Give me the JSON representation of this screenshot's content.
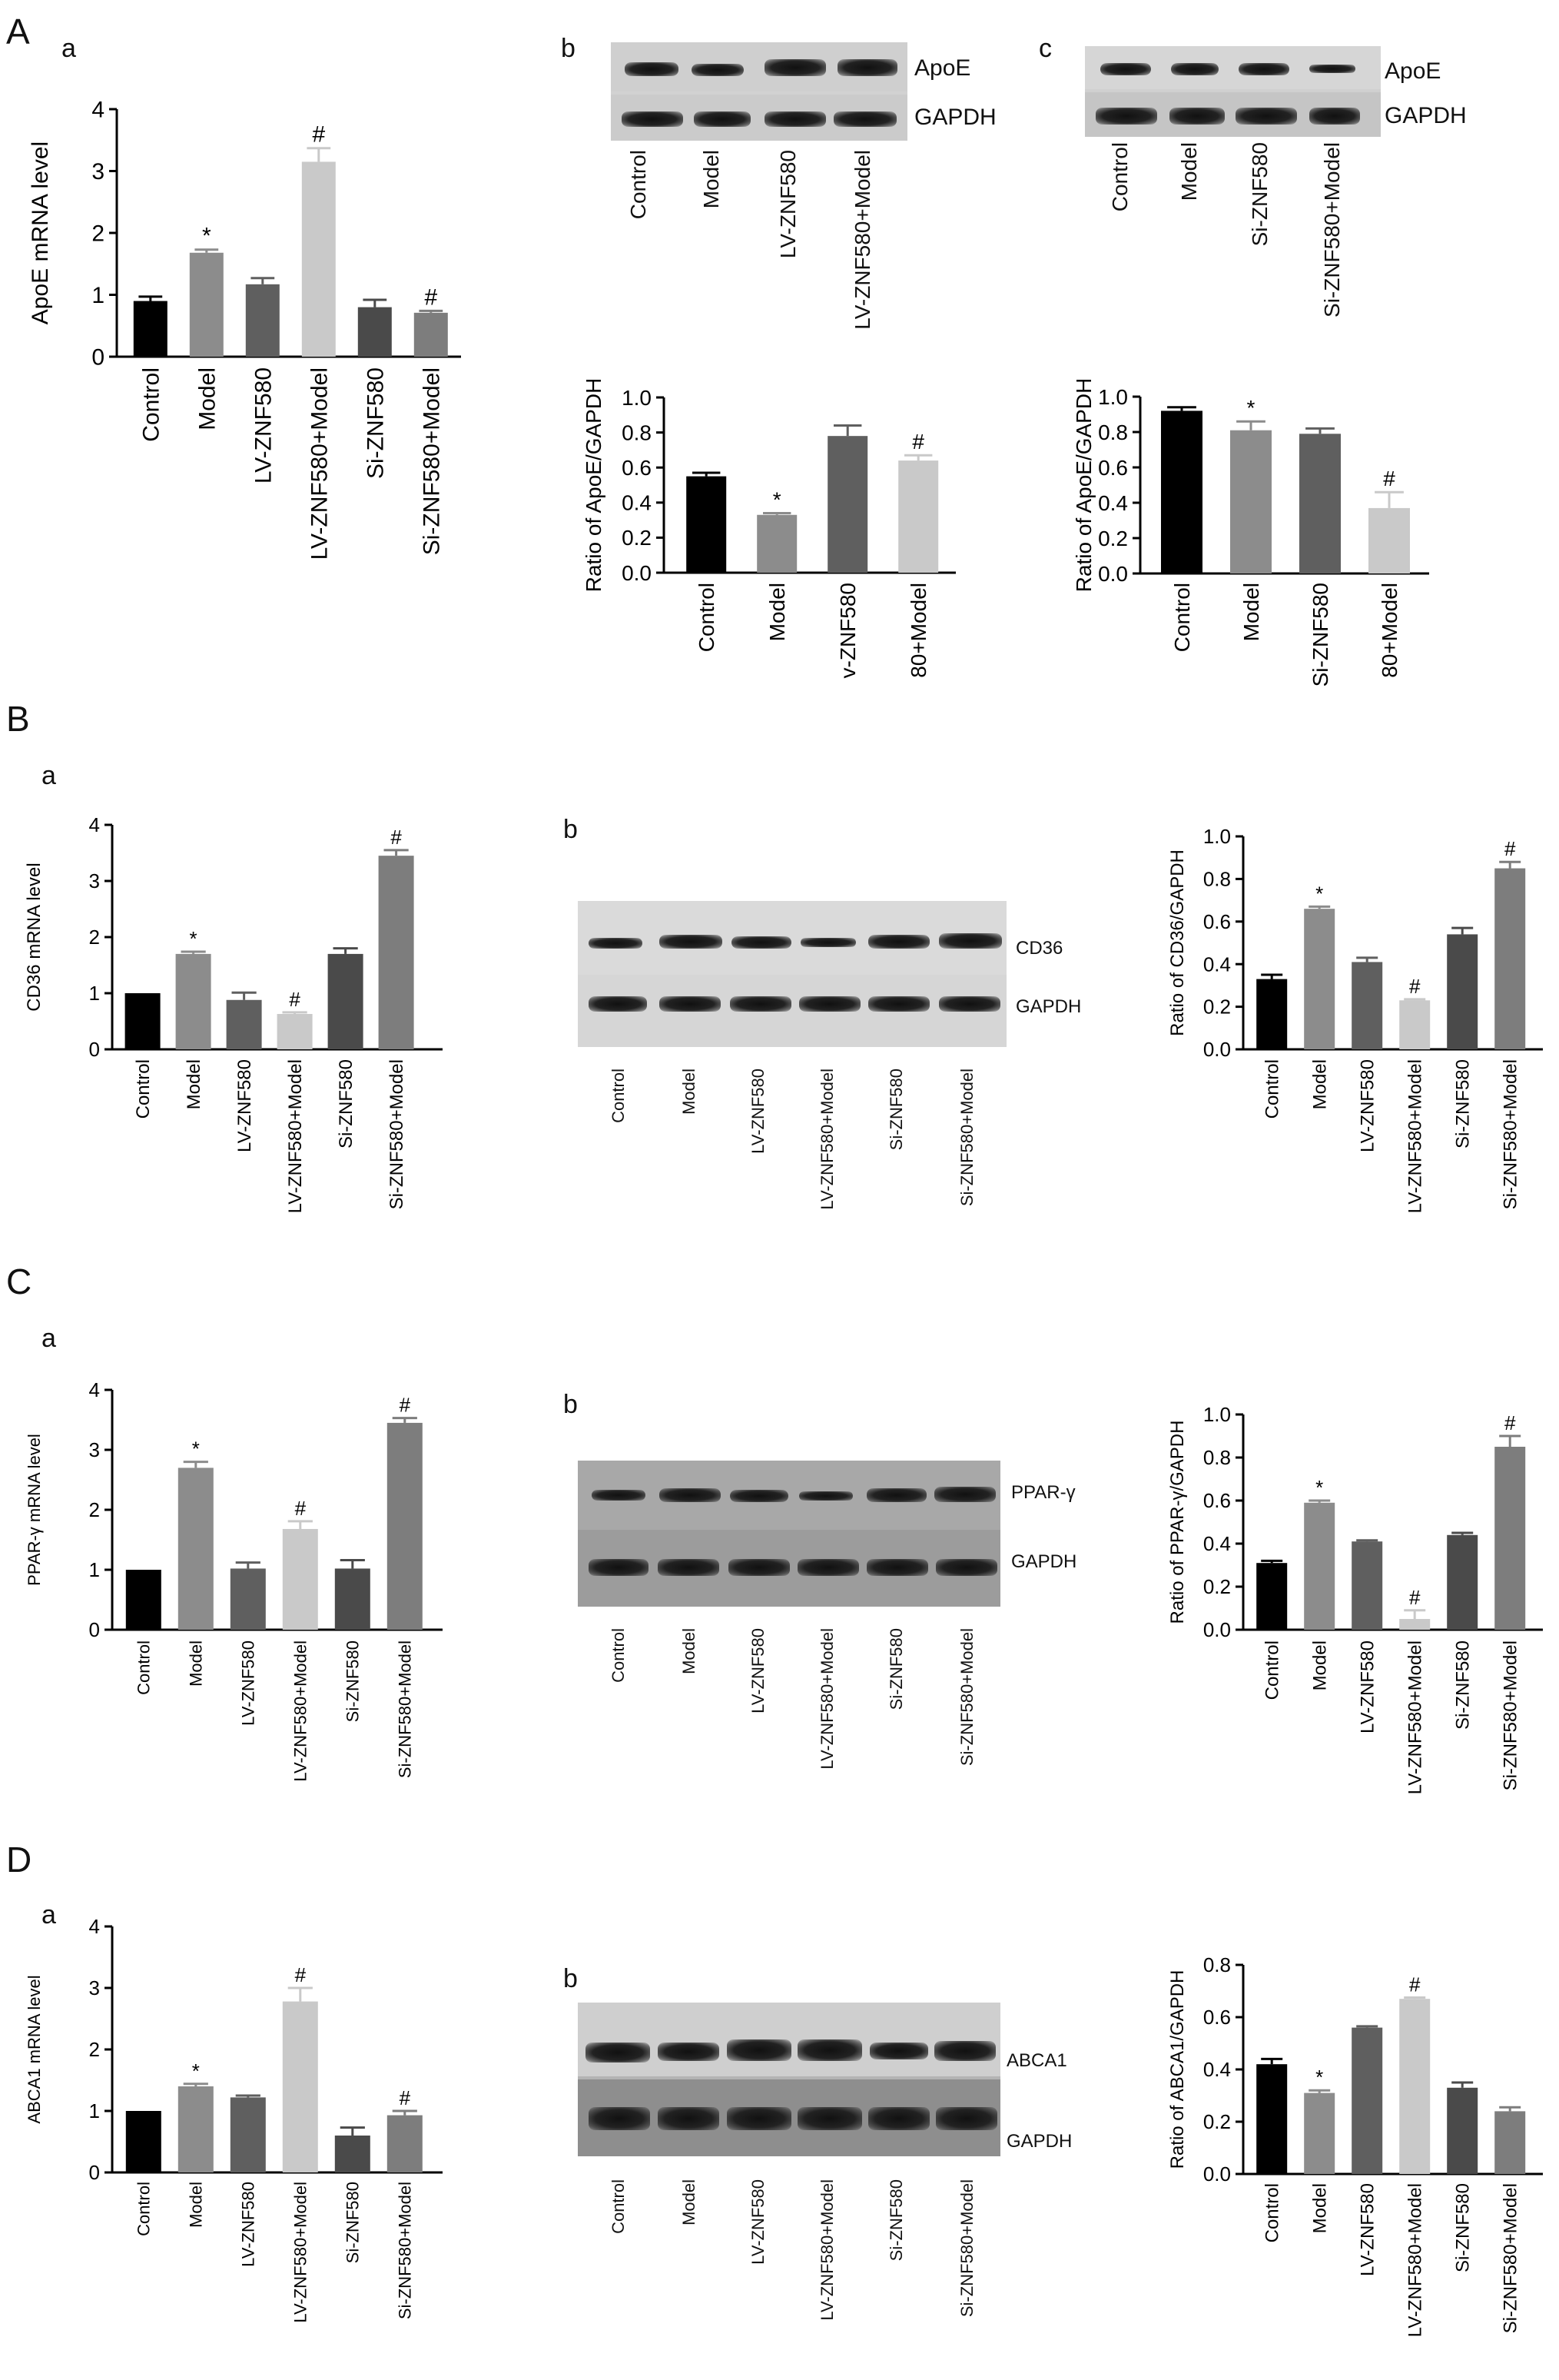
{
  "panels": {
    "A": "A",
    "B": "B",
    "C": "C",
    "D": "D"
  },
  "sublabels": {
    "a": "a",
    "b": "b",
    "c": "c"
  },
  "groups6": [
    "Control",
    "Model",
    "LV-ZNF580",
    "LV-ZNF580+Model",
    "Si-ZNF580",
    "Si-ZNF580+Model"
  ],
  "groupsA_b": [
    "Control",
    "Model",
    "LV-ZNF580",
    "LV-ZNF580+Model"
  ],
  "groupsA_c": [
    "Control",
    "Model",
    "Si-ZNF580",
    "Si-ZNF580+Model"
  ],
  "groupsA_b_chart": [
    "Control",
    "Model",
    "v-ZNF580",
    "80+Model"
  ],
  "groupsA_c_chart": [
    "Control",
    "Model",
    "Si-ZNF580",
    "80+Model"
  ],
  "blots": {
    "A_b": {
      "protein": "ApoE",
      "control": "GAPDH"
    },
    "A_c": {
      "protein": "ApoE",
      "control": "GAPDH"
    },
    "B_b": {
      "protein": "CD36",
      "control": "GAPDH"
    },
    "C_b": {
      "protein": "PPAR-γ",
      "control": "GAPDH"
    },
    "D_b": {
      "protein": "ABCA1",
      "control": "GAPDH"
    }
  },
  "colors": {
    "black": "#000000",
    "gray_mid": "#8c8c8c",
    "gray_dark": "#5f5f5f",
    "gray_light": "#c9c9c9",
    "gray_dark2": "#4a4a4a",
    "gray_med2": "#7d7d7d"
  },
  "chart_data": [
    {
      "id": "A_a",
      "type": "bar",
      "ylabel": "ApoE mRNA level",
      "ylim": [
        0,
        4
      ],
      "yticks": [
        "0",
        "1",
        "2",
        "3",
        "4"
      ],
      "categories": [
        "Control",
        "Model",
        "LV-ZNF580",
        "LV-ZNF580+Model",
        "Si-ZNF580",
        "Si-ZNF580+Model"
      ],
      "values": [
        0.9,
        1.68,
        1.17,
        3.15,
        0.8,
        0.71
      ],
      "errors": [
        0.07,
        0.05,
        0.1,
        0.22,
        0.12,
        0.03
      ],
      "marks": [
        "",
        "*",
        "",
        "#",
        "",
        "#"
      ]
    },
    {
      "id": "A_b",
      "type": "bar",
      "ylabel": "Ratio of ApoE/GAPDH",
      "ylim": [
        0,
        1.0
      ],
      "yticks": [
        "0.0",
        "0.2",
        "0.4",
        "0.6",
        "0.8",
        "1.0"
      ],
      "categories": [
        "Control",
        "Model",
        "v-ZNF580",
        "80+Model"
      ],
      "values": [
        0.55,
        0.33,
        0.78,
        0.64
      ],
      "errors": [
        0.02,
        0.01,
        0.06,
        0.03
      ],
      "marks": [
        "",
        "*",
        "",
        "#"
      ]
    },
    {
      "id": "A_c",
      "type": "bar",
      "ylabel": "Ratio of ApoE/GAPDH",
      "ylim": [
        0,
        1.0
      ],
      "yticks": [
        "0.0",
        "0.2",
        "0.4",
        "0.6",
        "0.8",
        "1.0"
      ],
      "categories": [
        "Control",
        "Model",
        "Si-ZNF580",
        "80+Model"
      ],
      "values": [
        0.92,
        0.81,
        0.79,
        0.37
      ],
      "errors": [
        0.02,
        0.05,
        0.03,
        0.09
      ],
      "marks": [
        "",
        "*",
        "",
        "#"
      ]
    },
    {
      "id": "B_a",
      "type": "bar",
      "ylabel": "CD36 mRNA level",
      "ylim": [
        0,
        4
      ],
      "yticks": [
        "0",
        "1",
        "2",
        "3",
        "4"
      ],
      "categories": [
        "Control",
        "Model",
        "LV-ZNF580",
        "LV-ZNF580+Model",
        "Si-ZNF580",
        "Si-ZNF580+Model"
      ],
      "values": [
        1.0,
        1.7,
        0.88,
        0.63,
        1.7,
        3.45
      ],
      "errors": [
        0,
        0.04,
        0.13,
        0.03,
        0.1,
        0.1
      ],
      "marks": [
        "",
        "*",
        "",
        "#",
        "",
        "#"
      ]
    },
    {
      "id": "B_b",
      "type": "bar",
      "ylabel": "Ratio of CD36/GAPDH",
      "ylim": [
        0,
        1.0
      ],
      "yticks": [
        "0.0",
        "0.2",
        "0.4",
        "0.6",
        "0.8",
        "1.0"
      ],
      "categories": [
        "Control",
        "Model",
        "LV-ZNF580",
        "LV-ZNF580+Model",
        "Si-ZNF580",
        "Si-ZNF580+Model"
      ],
      "values": [
        0.33,
        0.66,
        0.41,
        0.23,
        0.54,
        0.85
      ],
      "errors": [
        0.02,
        0.01,
        0.02,
        0.005,
        0.03,
        0.03
      ],
      "marks": [
        "",
        "*",
        "",
        "#",
        "",
        "#"
      ]
    },
    {
      "id": "C_a",
      "type": "bar",
      "ylabel": "PPAR-γ mRNA level",
      "ylim": [
        0,
        4
      ],
      "yticks": [
        "0",
        "1",
        "2",
        "3",
        "4"
      ],
      "categories": [
        "Control",
        "Model",
        "LV-ZNF580",
        "LV-ZNF580+Model",
        "Si-ZNF580",
        "Si-ZNF580+Model"
      ],
      "values": [
        1.0,
        2.7,
        1.02,
        1.68,
        1.02,
        3.45
      ],
      "errors": [
        0,
        0.1,
        0.1,
        0.13,
        0.14,
        0.08
      ],
      "marks": [
        "",
        "*",
        "",
        "#",
        "",
        "#"
      ]
    },
    {
      "id": "C_b",
      "type": "bar",
      "ylabel": "Ratio of PPAR-γ/GAPDH",
      "ylim": [
        0,
        1.0
      ],
      "yticks": [
        "0.0",
        "0.2",
        "0.4",
        "0.6",
        "0.8",
        "1.0"
      ],
      "categories": [
        "Control",
        "Model",
        "LV-ZNF580",
        "LV-ZNF580+Model",
        "Si-ZNF580",
        "Si-ZNF580+Model"
      ],
      "values": [
        0.31,
        0.59,
        0.41,
        0.05,
        0.44,
        0.85
      ],
      "errors": [
        0.01,
        0.01,
        0.005,
        0.04,
        0.01,
        0.05
      ],
      "marks": [
        "",
        "*",
        "",
        "#",
        "",
        "#"
      ]
    },
    {
      "id": "D_a",
      "type": "bar",
      "ylabel": "ABCA1 mRNA level",
      "ylim": [
        0,
        4
      ],
      "yticks": [
        "0",
        "1",
        "2",
        "3",
        "4"
      ],
      "categories": [
        "Control",
        "Model",
        "LV-ZNF580",
        "LV-ZNF580+Model",
        "Si-ZNF580",
        "Si-ZNF580+Model"
      ],
      "values": [
        1.0,
        1.4,
        1.22,
        2.78,
        0.6,
        0.93
      ],
      "errors": [
        0,
        0.04,
        0.03,
        0.22,
        0.13,
        0.07
      ],
      "marks": [
        "",
        "*",
        "",
        "#",
        "",
        "#"
      ]
    },
    {
      "id": "D_b",
      "type": "bar",
      "ylabel": "Ratio of ABCA1/GAPDH",
      "ylim": [
        0,
        0.8
      ],
      "yticks": [
        "0.0",
        "0.2",
        "0.4",
        "0.6",
        "0.8"
      ],
      "categories": [
        "Control",
        "Model",
        "LV-ZNF580",
        "LV-ZNF580+Model",
        "Si-ZNF580",
        "Si-ZNF580+Model"
      ],
      "values": [
        0.42,
        0.31,
        0.56,
        0.67,
        0.33,
        0.24
      ],
      "errors": [
        0.02,
        0.01,
        0.005,
        0.005,
        0.02,
        0.015
      ],
      "marks": [
        "",
        "*",
        "",
        "#",
        "",
        ""
      ]
    }
  ]
}
